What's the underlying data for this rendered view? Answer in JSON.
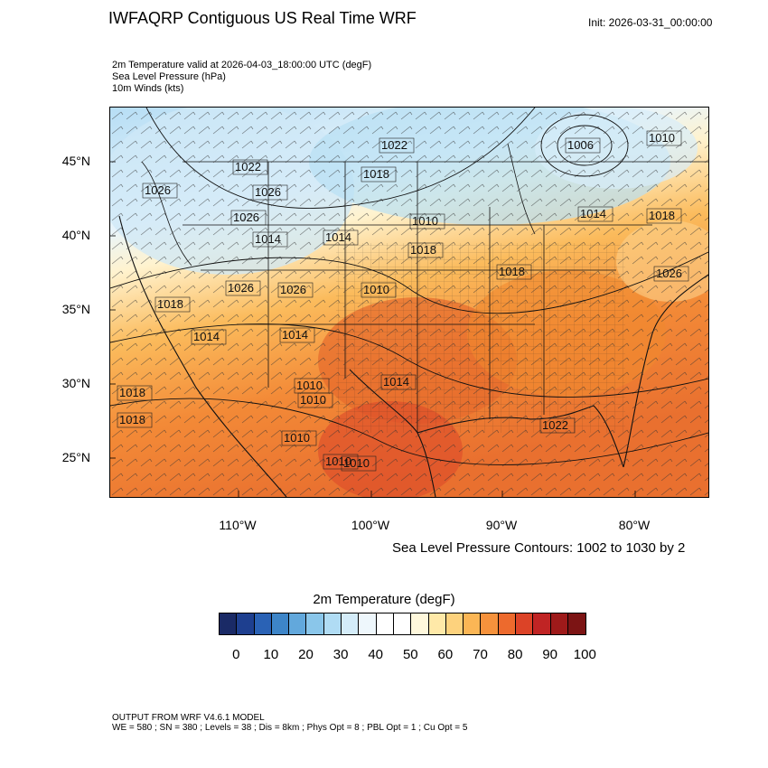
{
  "header": {
    "title": "IWFAQRP Contiguous US Real Time WRF",
    "init": "Init: 2026-03-31_00:00:00",
    "fields": [
      "2m Temperature valid at 2026-04-03_18:00:00 UTC   (degF)",
      "Sea Level Pressure   (hPa)",
      "10m Winds   (kts)"
    ]
  },
  "map": {
    "latitude_labels": [
      "45°N",
      "40°N",
      "35°N",
      "30°N",
      "25°N"
    ],
    "longitude_labels": [
      "110°W",
      "100°W",
      "90°W",
      "80°W"
    ],
    "pressure_labels": [
      "1022",
      "1018",
      "1006",
      "1010",
      "1026",
      "1022",
      "1026",
      "1026",
      "1014",
      "1014",
      "1010",
      "1018",
      "1014",
      "1018",
      "1026",
      "1010",
      "1018",
      "1026",
      "1026",
      "1018",
      "1014",
      "1014",
      "1010",
      "1014",
      "1018",
      "1018",
      "1022",
      "1010",
      "1010",
      "1010",
      "1010"
    ],
    "contour_note": "Sea Level Pressure Contours: 1002 to 1030 by 2"
  },
  "colorbar": {
    "title": "2m Temperature  (degF)",
    "colors": [
      "#1a2a66",
      "#1e3f8f",
      "#2a62b5",
      "#3d85c8",
      "#62a8dc",
      "#8ac6ea",
      "#b0dcf4",
      "#d4ecf9",
      "#eef7fc",
      "#ffffff",
      "#ffffff",
      "#fff8dc",
      "#ffe9a8",
      "#fdd27d",
      "#fbb655",
      "#f6923c",
      "#ed6a2d",
      "#dc4327",
      "#c02424",
      "#9e1a1a",
      "#7c1414"
    ],
    "labels": [
      "0",
      "10",
      "20",
      "30",
      "40",
      "50",
      "60",
      "70",
      "80",
      "90",
      "100"
    ]
  },
  "footer": {
    "line1": "OUTPUT FROM WRF V4.6.1 MODEL",
    "line2": "WE = 580 ; SN = 380 ; Levels = 38 ; Dis = 8km ; Phys Opt = 8 ; PBL Opt = 1 ; Cu Opt = 5"
  }
}
